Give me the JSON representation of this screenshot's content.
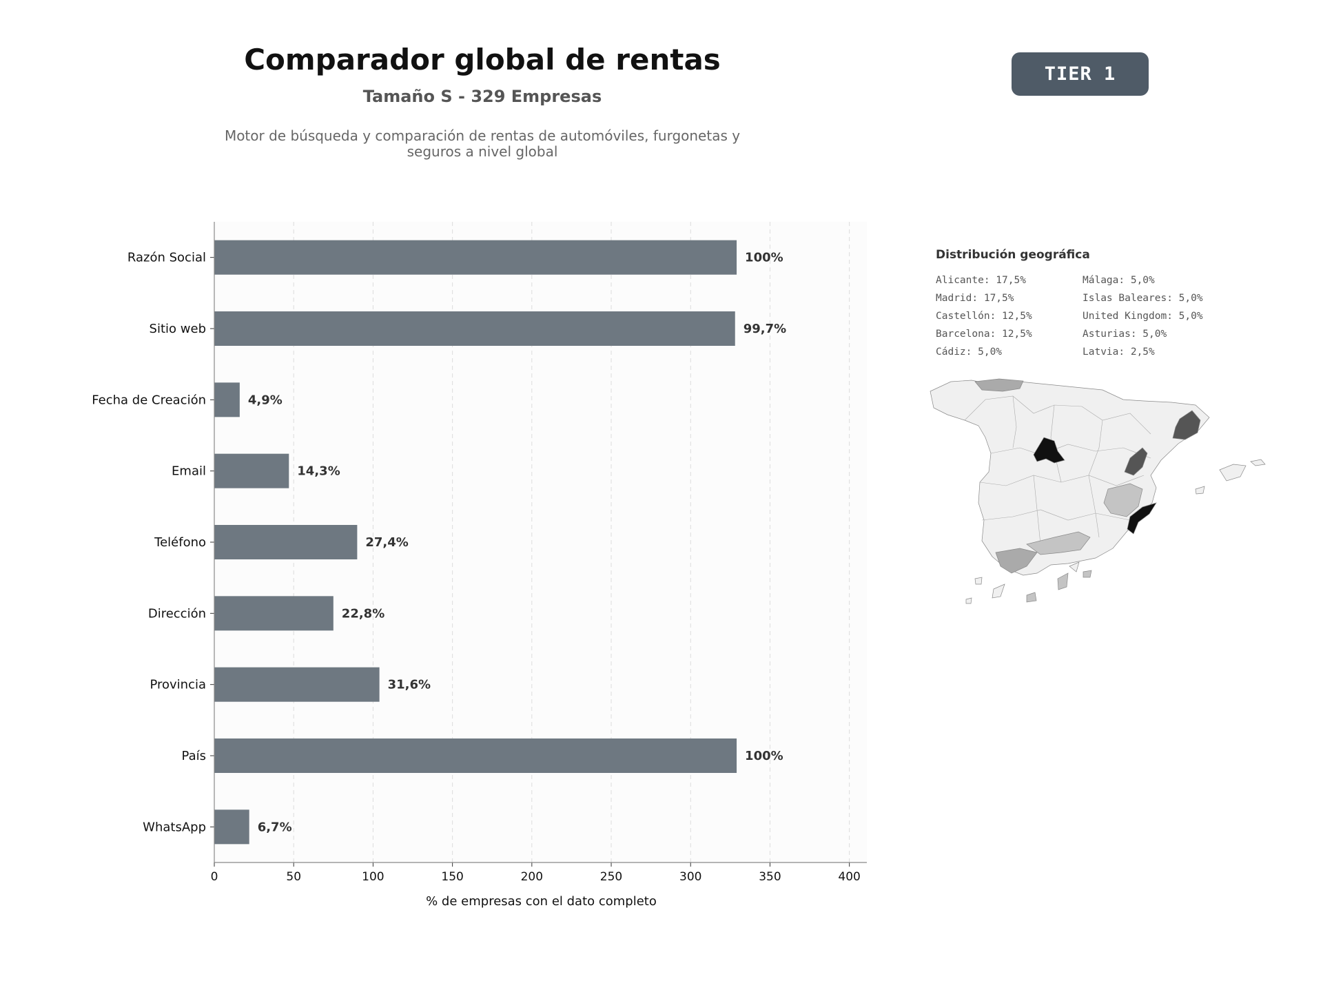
{
  "header": {
    "title": "Comparador global de rentas",
    "subtitle": "Tamaño S - 329 Empresas",
    "description_line1": "Motor de búsqueda y comparación de rentas de automóviles, furgonetas y",
    "description_line2": "seguros a nivel global",
    "tier_badge": "TIER 1"
  },
  "chart_data": {
    "type": "bar",
    "orientation": "horizontal",
    "categories": [
      "Razón Social",
      "Sitio web",
      "Fecha de Creación",
      "Email",
      "Teléfono",
      "Dirección",
      "Provincia",
      "País",
      "WhatsApp"
    ],
    "values": [
      329,
      328,
      16,
      47,
      90,
      75,
      104,
      329,
      22
    ],
    "value_labels": [
      "100%",
      "99,7%",
      "4,9%",
      "14,3%",
      "27,4%",
      "22,8%",
      "31,6%",
      "100%",
      "6,7%"
    ],
    "xlabel": "% de empresas con el dato completo",
    "xlim": [
      0,
      411
    ],
    "xticks": [
      0,
      50,
      100,
      150,
      200,
      250,
      300,
      350,
      400
    ],
    "grid": "x dashed",
    "bar_color": "#6e7881",
    "background_color": "#fcfcfc"
  },
  "geo": {
    "title": "Distribución geográfica",
    "col1": [
      "Alicante: 17,5%",
      "Madrid: 17,5%",
      "Castellón: 12,5%",
      "Barcelona: 12,5%",
      "Cádiz: 5,0%"
    ],
    "col2": [
      "Málaga: 5,0%",
      "Islas Baleares: 5,0%",
      "United Kingdom: 5,0%",
      "Asturias: 5,0%",
      "Latvia: 2,5%"
    ],
    "map_colors": {
      "base": "#f0f0f0",
      "highest": "#111111",
      "high": "#555555",
      "low": "#aaaaaa",
      "lower": "#c4c4c4"
    }
  }
}
